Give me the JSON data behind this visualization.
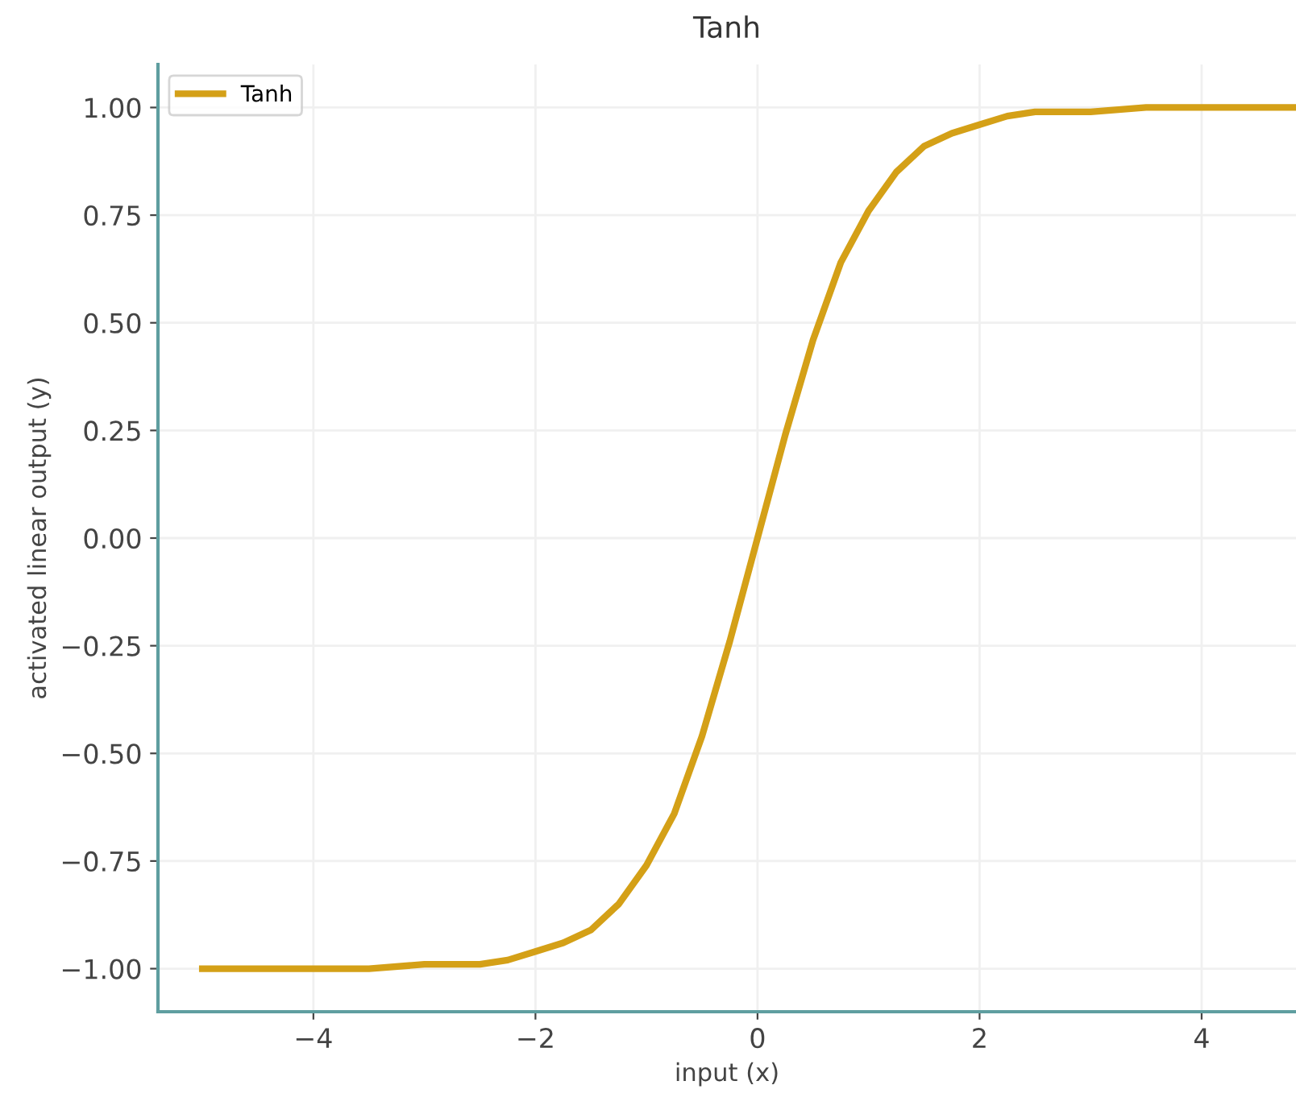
{
  "chart_data": {
    "type": "line",
    "title": "Tanh",
    "xlabel": "input (x)",
    "ylabel": "activated linear output (y)",
    "x": [
      -5,
      -4.5,
      -4,
      -3.5,
      -3,
      -2.75,
      -2.5,
      -2.25,
      -2,
      -1.75,
      -1.5,
      -1.25,
      -1,
      -0.75,
      -0.5,
      -0.25,
      0,
      0.25,
      0.5,
      0.75,
      1,
      1.25,
      1.5,
      1.75,
      2,
      2.25,
      2.5,
      2.75,
      3,
      3.5,
      4,
      4.5,
      4.85
    ],
    "series": [
      {
        "name": "Tanh",
        "color": "#d4a017",
        "values": [
          -1.0,
          -1.0,
          -1.0,
          -1.0,
          -0.99,
          -0.99,
          -0.99,
          -0.98,
          -0.96,
          -0.94,
          -0.91,
          -0.85,
          -0.76,
          -0.64,
          -0.46,
          -0.24,
          0.0,
          0.24,
          0.46,
          0.64,
          0.76,
          0.85,
          0.91,
          0.94,
          0.96,
          0.98,
          0.99,
          0.99,
          0.99,
          1.0,
          1.0,
          1.0,
          1.0
        ]
      }
    ],
    "xlim": [
      -5.4,
      4.85
    ],
    "ylim": [
      -1.1,
      1.1
    ],
    "xticks": [
      -4,
      -2,
      0,
      2,
      4
    ],
    "yticks": [
      {
        "value": -1,
        "label": "−1.00"
      },
      {
        "value": -0.75,
        "label": "−0.75"
      },
      {
        "value": -0.5,
        "label": "−0.50"
      },
      {
        "value": -0.25,
        "label": "−0.25"
      },
      {
        "value": 0,
        "label": "0.00"
      },
      {
        "value": 0.25,
        "label": "0.25"
      },
      {
        "value": 0.5,
        "label": "0.50"
      },
      {
        "value": 0.75,
        "label": "0.75"
      },
      {
        "value": 1,
        "label": "1.00"
      }
    ],
    "grid": true,
    "legend": "top left",
    "line_style": "solid",
    "marker": "none"
  }
}
